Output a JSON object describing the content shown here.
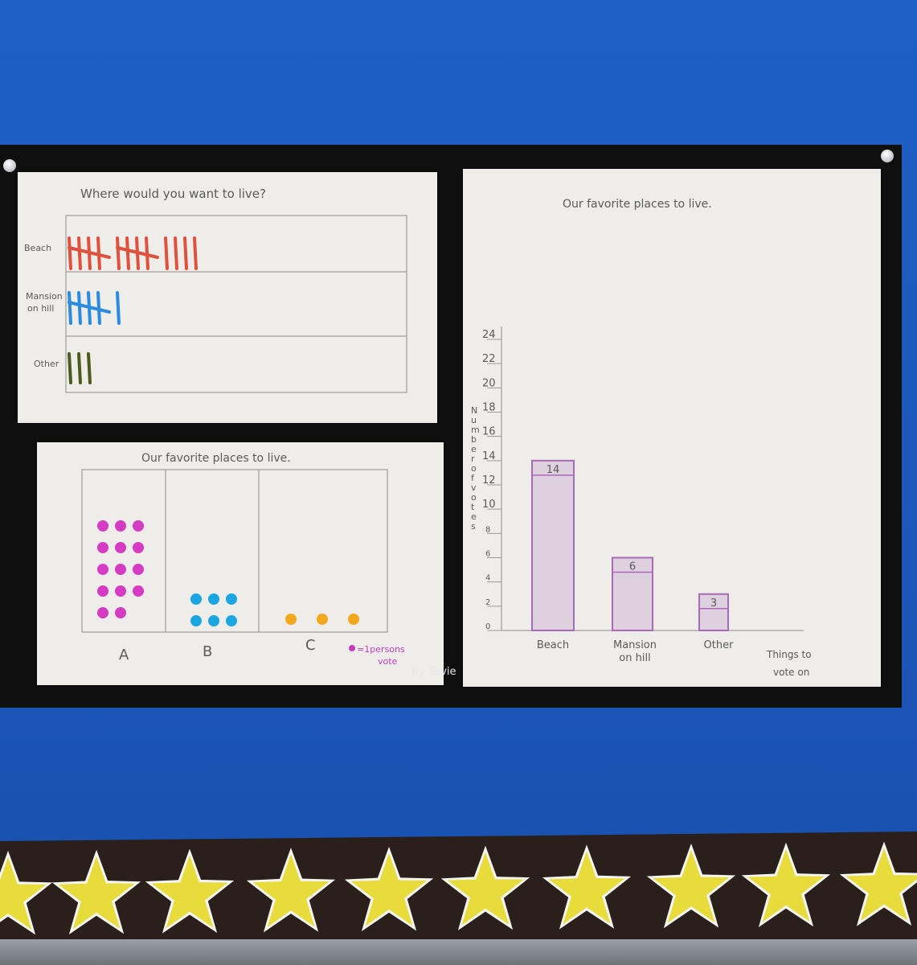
{
  "tally_chart": {
    "title": "Where would you want to live?",
    "rows": [
      {
        "label": "Beach",
        "count": 14,
        "color": "#e0513d"
      },
      {
        "label": "Mansion on hill",
        "line1": "Mansion",
        "line2": "on hill",
        "count": 6,
        "color": "#2a8be0"
      },
      {
        "label": "Other",
        "count": 3,
        "color": "#4c5a1c"
      }
    ]
  },
  "pictograph": {
    "title": "Our favorite places to live.",
    "columns": [
      {
        "label": "A",
        "count": 14,
        "color": "#d63bc4"
      },
      {
        "label": "B",
        "count": 6,
        "color": "#1aa6e0"
      },
      {
        "label": "C",
        "count": 3,
        "color": "#f2a81d"
      }
    ],
    "key": {
      "line1": "=1persons",
      "line2": "vote",
      "color": "#c23cc0"
    }
  },
  "chart_data": {
    "type": "bar",
    "title": "Our favorite places to live.",
    "categories": [
      "Beach",
      "Mansion on hill",
      "Other"
    ],
    "category_lines": [
      [
        "Beach"
      ],
      [
        "Mansion",
        "on hill"
      ],
      [
        "Other"
      ]
    ],
    "values": [
      14,
      6,
      3
    ],
    "data_labels": [
      "14",
      "6",
      "3"
    ],
    "xlabel_lines": [
      "Things to",
      "vote on"
    ],
    "ylabel": "Number of votes",
    "yticks": [
      0,
      2,
      4,
      6,
      8,
      10,
      12,
      14,
      16,
      18,
      20,
      22,
      24
    ],
    "ylim": [
      0,
      24
    ],
    "bar_color": "#a86ab5"
  },
  "author": "By Silvie"
}
